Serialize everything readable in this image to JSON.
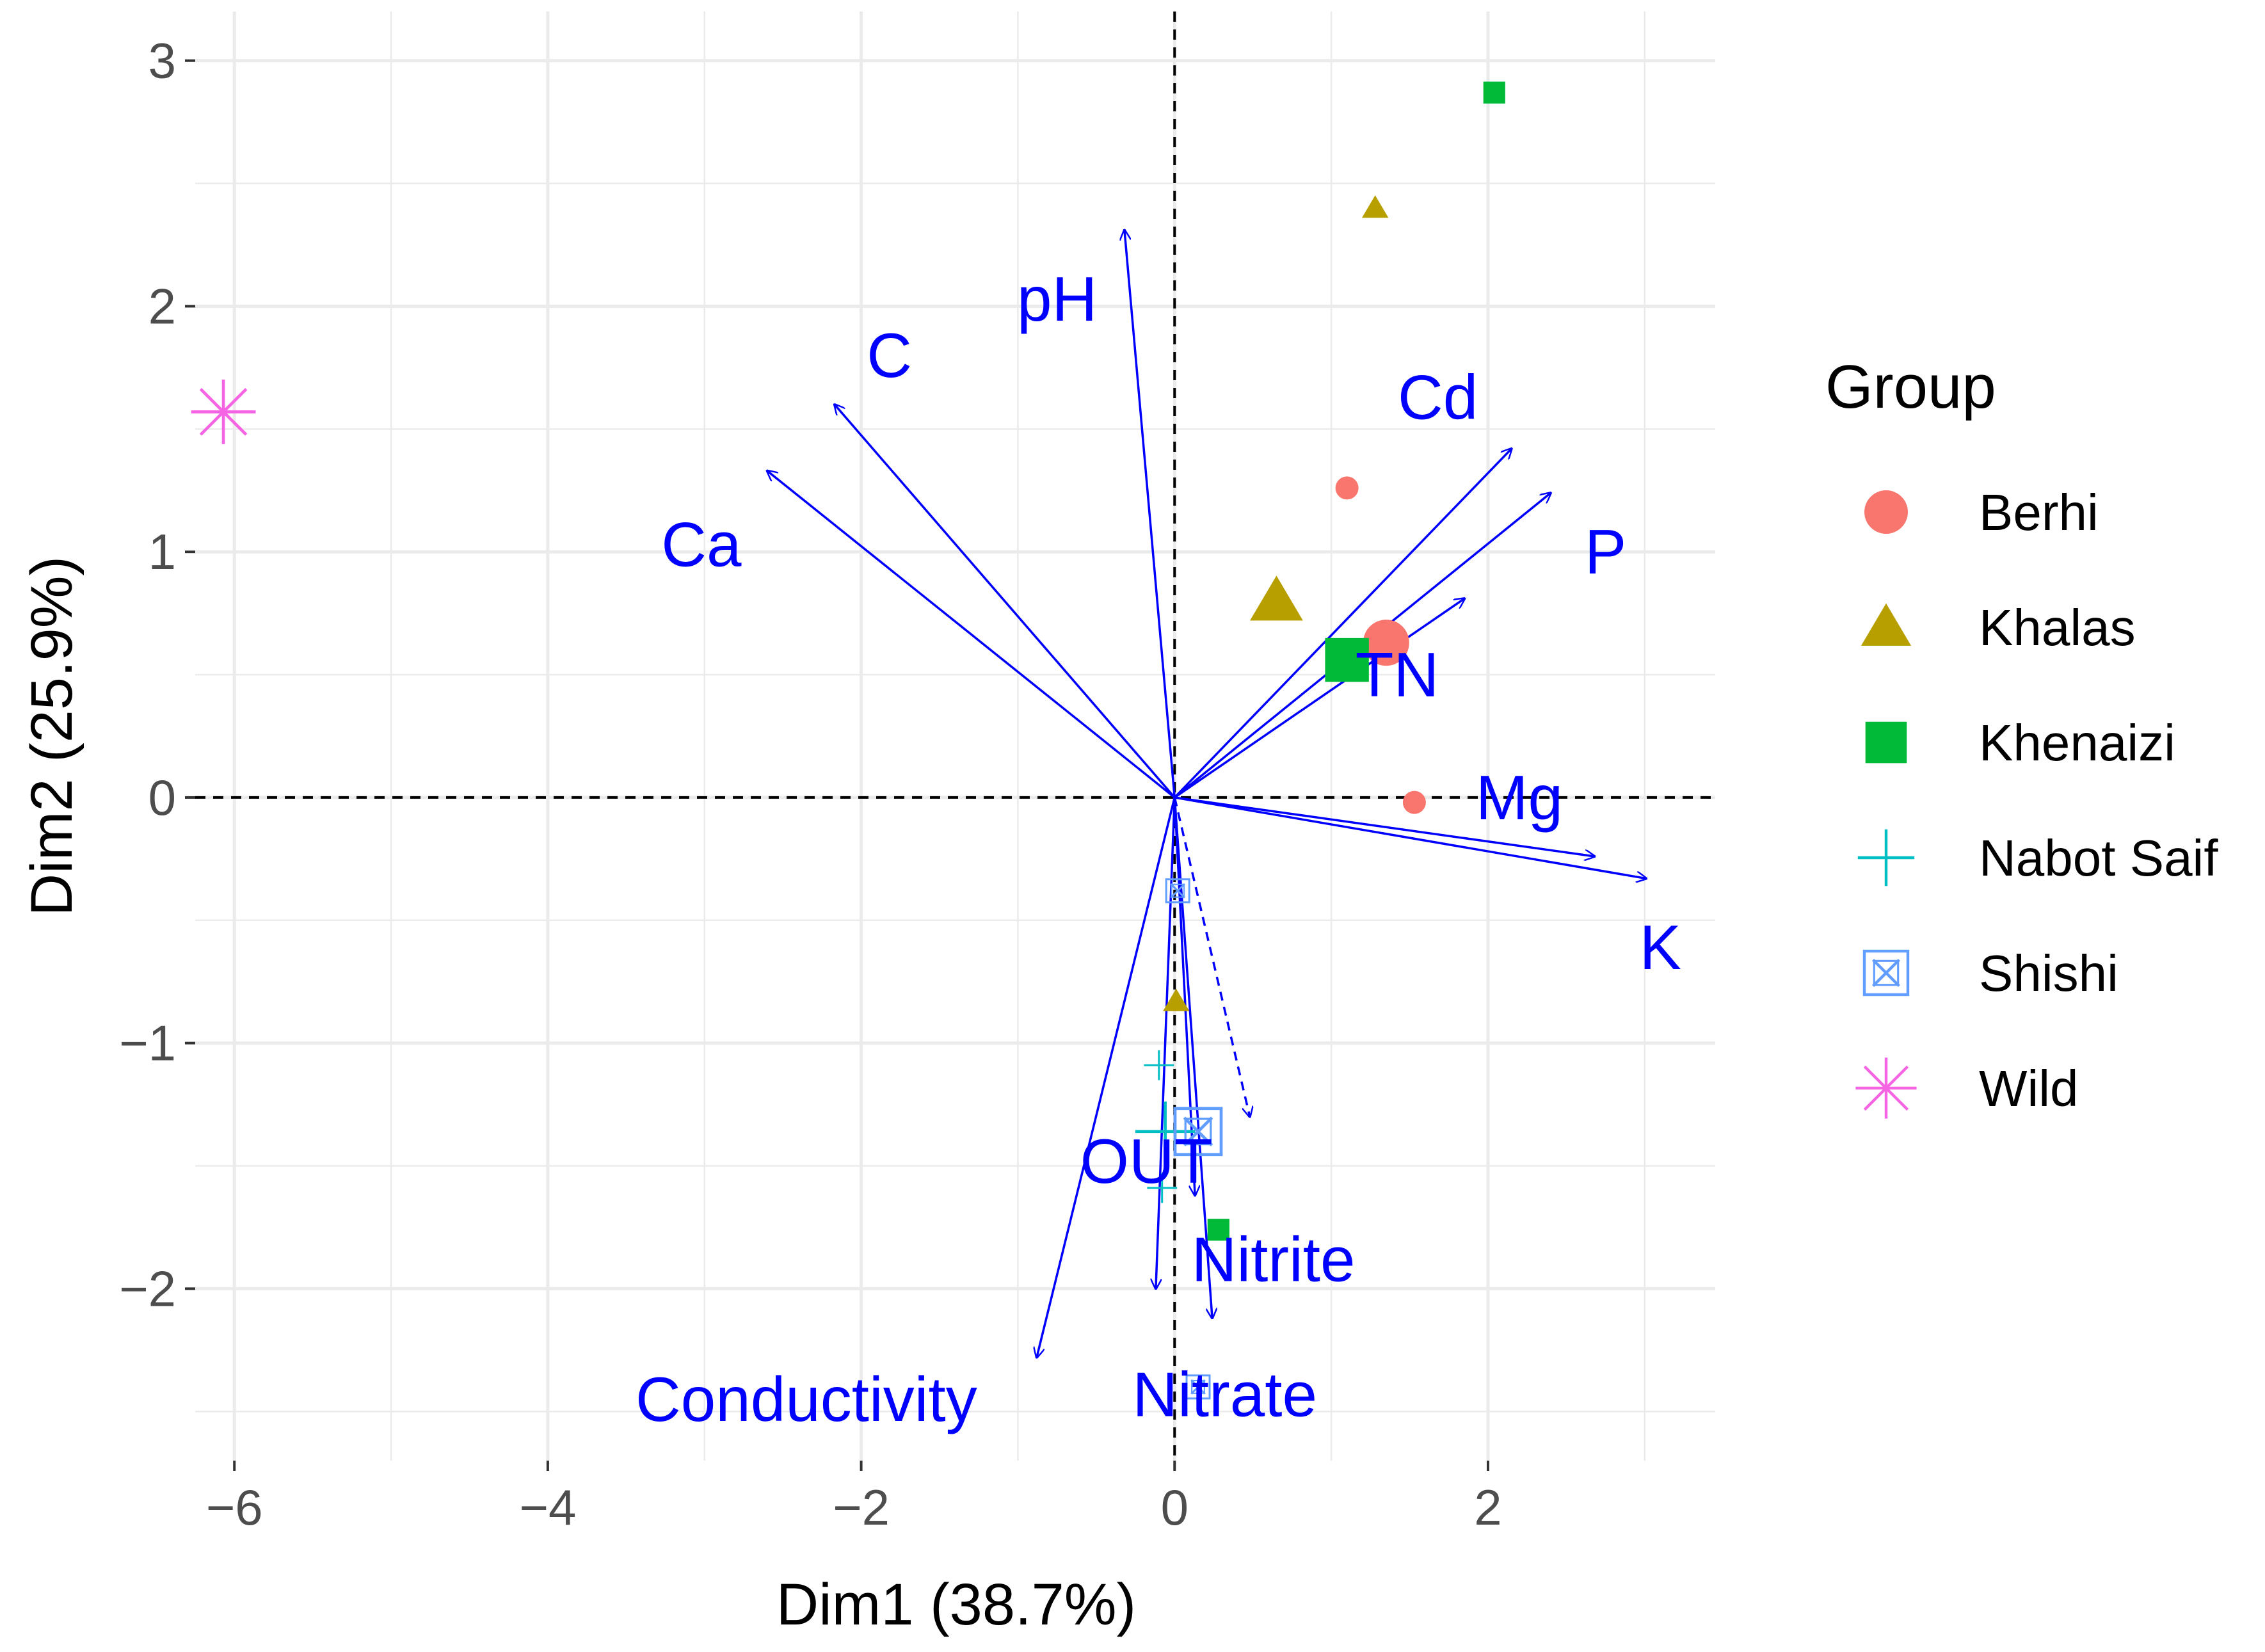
{
  "chart_data": {
    "type": "scatter",
    "subtype": "pca-biplot",
    "xlabel": "Dim1 (38.7%)",
    "ylabel": "Dim2 (25.9%)",
    "xlim": [
      -6.25,
      3.45
    ],
    "ylim": [
      -2.7,
      3.2
    ],
    "x_ticks": [
      -6,
      -4,
      -2,
      0,
      2
    ],
    "x_tick_labels": [
      "−6",
      "−4",
      "−2",
      "0",
      "2"
    ],
    "y_ticks": [
      -2,
      -1,
      0,
      1,
      2,
      3
    ],
    "y_tick_labels": [
      "−2",
      "−1",
      "0",
      "1",
      "2",
      "3"
    ],
    "grid": true,
    "reference_lines": {
      "x": 0,
      "y": 0,
      "style": "dashed"
    },
    "legend": {
      "title": "Group",
      "position": "right",
      "entries": [
        {
          "name": "Berhi",
          "color": "#f8766d",
          "shape": "circle"
        },
        {
          "name": "Khalas",
          "color": "#b79f00",
          "shape": "triangle"
        },
        {
          "name": "Khenaizi",
          "color": "#00ba38",
          "shape": "square"
        },
        {
          "name": "Nabot Saif",
          "color": "#00bfc4",
          "shape": "plus"
        },
        {
          "name": "Shishi",
          "color": "#619cff",
          "shape": "boxx"
        },
        {
          "name": "Wild",
          "color": "#f564e3",
          "shape": "asterisk"
        }
      ]
    },
    "points": [
      {
        "group": "Berhi",
        "x": 1.1,
        "y": 1.26,
        "size": "small"
      },
      {
        "group": "Berhi",
        "x": 1.53,
        "y": -0.02,
        "size": "small"
      },
      {
        "group": "Berhi",
        "x": 1.35,
        "y": 0.63,
        "size": "large"
      },
      {
        "group": "Khalas",
        "x": 1.28,
        "y": 2.4,
        "size": "small"
      },
      {
        "group": "Khalas",
        "x": 0.65,
        "y": 0.8,
        "size": "large"
      },
      {
        "group": "Khalas",
        "x": 0.01,
        "y": -0.83,
        "size": "small"
      },
      {
        "group": "Khenaizi",
        "x": 2.04,
        "y": 2.87,
        "size": "small"
      },
      {
        "group": "Khenaizi",
        "x": 1.1,
        "y": 0.56,
        "size": "large"
      },
      {
        "group": "Khenaizi",
        "x": 0.28,
        "y": -1.76,
        "size": "small"
      },
      {
        "group": "Nabot Saif",
        "x": -0.1,
        "y": -1.09,
        "size": "small"
      },
      {
        "group": "Nabot Saif",
        "x": -0.08,
        "y": -1.59,
        "size": "small"
      },
      {
        "group": "Nabot Saif",
        "x": -0.06,
        "y": -1.36,
        "size": "large"
      },
      {
        "group": "Shishi",
        "x": 0.02,
        "y": -0.38,
        "size": "small"
      },
      {
        "group": "Shishi",
        "x": 0.15,
        "y": -2.4,
        "size": "small"
      },
      {
        "group": "Shishi",
        "x": 0.15,
        "y": -1.36,
        "size": "large"
      },
      {
        "group": "Wild",
        "x": -6.07,
        "y": 1.57,
        "size": "large"
      }
    ],
    "variables": [
      {
        "name": "pH",
        "x": -0.32,
        "y": 2.31,
        "label_x": -0.75,
        "label_y": 2.03,
        "dashed": false
      },
      {
        "name": "C",
        "x": -2.17,
        "y": 1.6,
        "label_x": -1.82,
        "label_y": 1.8,
        "dashed": false
      },
      {
        "name": "Ca",
        "x": -2.6,
        "y": 1.33,
        "label_x": -3.02,
        "label_y": 1.03,
        "dashed": false
      },
      {
        "name": "Cd",
        "x": 2.15,
        "y": 1.42,
        "label_x": 1.68,
        "label_y": 1.63,
        "dashed": false
      },
      {
        "name": "P",
        "x": 2.4,
        "y": 1.24,
        "label_x": 2.75,
        "label_y": 1.0,
        "dashed": false
      },
      {
        "name": "TN",
        "x": 1.85,
        "y": 0.81,
        "label_x": 1.42,
        "label_y": 0.5,
        "dashed": false
      },
      {
        "name": "Mg",
        "x": 2.68,
        "y": -0.24,
        "label_x": 2.2,
        "label_y": 0.0,
        "dashed": false
      },
      {
        "name": "K",
        "x": 3.01,
        "y": -0.33,
        "label_x": 3.1,
        "label_y": -0.61,
        "dashed": false
      },
      {
        "name": "Conductivity",
        "x": -0.88,
        "y": -2.28,
        "label_x": -2.35,
        "label_y": -2.45,
        "dashed": false
      },
      {
        "name": "OUT",
        "x": -0.12,
        "y": -2.0,
        "label_x": -0.18,
        "label_y": -1.48,
        "dashed": false
      },
      {
        "name": "Nitrate",
        "x": 0.24,
        "y": -2.12,
        "label_x": 0.32,
        "label_y": -2.43,
        "dashed": false
      },
      {
        "name": "Nitrite",
        "x": 0.13,
        "y": -1.62,
        "label_x": 0.63,
        "label_y": -1.88,
        "dashed": false
      },
      {
        "name": "",
        "x": 0.48,
        "y": -1.3,
        "label_x": 0,
        "label_y": 0,
        "dashed": true
      }
    ]
  }
}
